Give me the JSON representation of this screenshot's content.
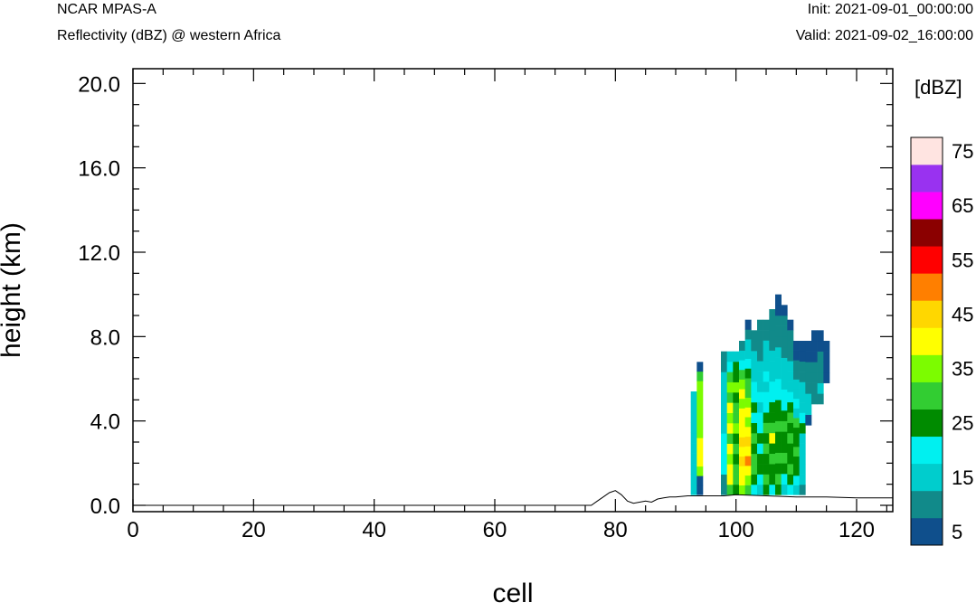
{
  "header": {
    "model": "NCAR MPAS-A",
    "field": "Reflectivity (dBZ) @ western Africa",
    "init": "Init: 2021-09-01_00:00:00",
    "valid": "Valid: 2021-09-02_16:00:00"
  },
  "chart_data": {
    "type": "heatmap",
    "title": "Reflectivity (dBZ) @ western Africa",
    "xlabel": "cell",
    "ylabel": "height (km)",
    "xlim": [
      0,
      126
    ],
    "ylim": [
      -0.3,
      20.7
    ],
    "xticks": [
      0,
      20,
      40,
      60,
      80,
      100,
      120
    ],
    "yticks": [
      0.0,
      4.0,
      8.0,
      12.0,
      16.0,
      20.0
    ],
    "ytick_labels": [
      "0.0",
      "4.0",
      "8.0",
      "12.0",
      "16.0",
      "20.0"
    ],
    "colorbar": {
      "unit_label": "[dBZ]",
      "levels": [
        5,
        10,
        15,
        20,
        25,
        30,
        35,
        40,
        45,
        50,
        55,
        60,
        65,
        70,
        75
      ],
      "tick_labels": [
        "5",
        "15",
        "25",
        "35",
        "45",
        "55",
        "65",
        "75"
      ],
      "colors": [
        "#0f4f8c",
        "#118a8a",
        "#00cdcd",
        "#00f0f0",
        "#008b00",
        "#32cd32",
        "#7cfc00",
        "#ffff00",
        "#ffd700",
        "#ff7f00",
        "#ff0000",
        "#8b0000",
        "#ff00ff",
        "#9932f0",
        "#ffe4e1"
      ]
    },
    "terrain": {
      "x": [
        0,
        76,
        77,
        78,
        79,
        80,
        81,
        82,
        83,
        84,
        85,
        86,
        87,
        88,
        89,
        90,
        92,
        94,
        96,
        98,
        100,
        105,
        110,
        115,
        120,
        126
      ],
      "y": [
        0.0,
        0.0,
        0.2,
        0.4,
        0.6,
        0.7,
        0.5,
        0.2,
        0.1,
        0.15,
        0.2,
        0.15,
        0.3,
        0.35,
        0.4,
        0.4,
        0.45,
        0.45,
        0.45,
        0.45,
        0.5,
        0.45,
        0.4,
        0.4,
        0.35,
        0.35
      ]
    },
    "columns": [
      {
        "x": 93,
        "bot": 0.5,
        "top": 5.4,
        "dbz": [
          15,
          15,
          15,
          15,
          15,
          15,
          15,
          15,
          15,
          15
        ]
      },
      {
        "x": 94,
        "bot": 0.5,
        "top": 6.8,
        "dbz": [
          5,
          5,
          35,
          40,
          40,
          40,
          35,
          35,
          35,
          35,
          35,
          35,
          30,
          5
        ]
      },
      {
        "x": 98,
        "bot": 0.5,
        "top": 7.3,
        "dbz": [
          10,
          20,
          20,
          15,
          15,
          15,
          10
        ]
      },
      {
        "x": 99,
        "bot": 0.5,
        "top": 7.3,
        "dbz": [
          30,
          40,
          40,
          35,
          40,
          30,
          40,
          35,
          40,
          30,
          35,
          30,
          20,
          15
        ]
      },
      {
        "x": 100,
        "bot": 0.5,
        "top": 7.3,
        "dbz": [
          25,
          30,
          30,
          25,
          30,
          25,
          35,
          30,
          30,
          25,
          35,
          25,
          25,
          15
        ]
      },
      {
        "x": 101,
        "bot": 0.5,
        "top": 7.8,
        "dbz": [
          35,
          40,
          40,
          45,
          40,
          45,
          40,
          40,
          40,
          35,
          40,
          35,
          30,
          20,
          15,
          10
        ]
      },
      {
        "x": 102,
        "bot": 0.5,
        "top": 8.8,
        "dbz": [
          30,
          35,
          40,
          50,
          40,
          45,
          40,
          35,
          40,
          35,
          30,
          30,
          25,
          20,
          15,
          15,
          10,
          5
        ]
      },
      {
        "x": 103,
        "bot": 0.5,
        "top": 8.3,
        "dbz": [
          20,
          25,
          30,
          30,
          25,
          30,
          25,
          20,
          25,
          20,
          20,
          15,
          15,
          15,
          10,
          10
        ]
      },
      {
        "x": 104,
        "bot": 0.5,
        "top": 8.8,
        "dbz": [
          15,
          20,
          25,
          25,
          20,
          25,
          20,
          20,
          15,
          20,
          15,
          15,
          15,
          10,
          10,
          10,
          10
        ]
      },
      {
        "x": 105,
        "bot": 0.5,
        "top": 8.8,
        "dbz": [
          25,
          30,
          25,
          25,
          30,
          25,
          30,
          25,
          20,
          20,
          15,
          20,
          15,
          15,
          15,
          10,
          10
        ]
      },
      {
        "x": 106,
        "bot": 0.5,
        "top": 9.3,
        "dbz": [
          20,
          25,
          25,
          30,
          25,
          40,
          30,
          25,
          25,
          20,
          20,
          15,
          15,
          15,
          10,
          10,
          10,
          10
        ]
      },
      {
        "x": 107,
        "bot": 0.5,
        "top": 10.0,
        "dbz": [
          25,
          30,
          25,
          30,
          25,
          25,
          30,
          25,
          25,
          20,
          20,
          15,
          15,
          15,
          10,
          10,
          10,
          5,
          5
        ]
      },
      {
        "x": 108,
        "bot": 0.5,
        "top": 9.5,
        "dbz": [
          15,
          20,
          25,
          30,
          25,
          25,
          30,
          25,
          20,
          20,
          15,
          15,
          15,
          10,
          10,
          10,
          10,
          5
        ]
      },
      {
        "x": 109,
        "bot": 0.5,
        "top": 8.8,
        "dbz": [
          20,
          25,
          30,
          25,
          25,
          30,
          25,
          30,
          25,
          20,
          15,
          15,
          15,
          10,
          10,
          10,
          5
        ]
      },
      {
        "x": 110,
        "bot": 0.5,
        "top": 7.8,
        "dbz": [
          15,
          20,
          25,
          25,
          30,
          25,
          25,
          30,
          15,
          20,
          15,
          15,
          10,
          10,
          5,
          5
        ]
      },
      {
        "x": 111,
        "bot": 0.5,
        "top": 7.8,
        "dbz": [
          10,
          15,
          15,
          15,
          15,
          15,
          25,
          20,
          15,
          15,
          15,
          10,
          10,
          5,
          5
        ]
      },
      {
        "x": 112,
        "bot": 3.8,
        "top": 7.8,
        "dbz": [
          5,
          15,
          15,
          10,
          10,
          10,
          5,
          5
        ]
      },
      {
        "x": 113,
        "bot": 4.8,
        "top": 8.3,
        "dbz": [
          10,
          10,
          10,
          10,
          5,
          5,
          5
        ]
      },
      {
        "x": 114,
        "bot": 4.8,
        "top": 8.3,
        "dbz": [
          10,
          15,
          10,
          10,
          10,
          5,
          5
        ]
      },
      {
        "x": 115,
        "bot": 5.8,
        "top": 7.8,
        "dbz": [
          5,
          5,
          5,
          5
        ]
      }
    ]
  }
}
